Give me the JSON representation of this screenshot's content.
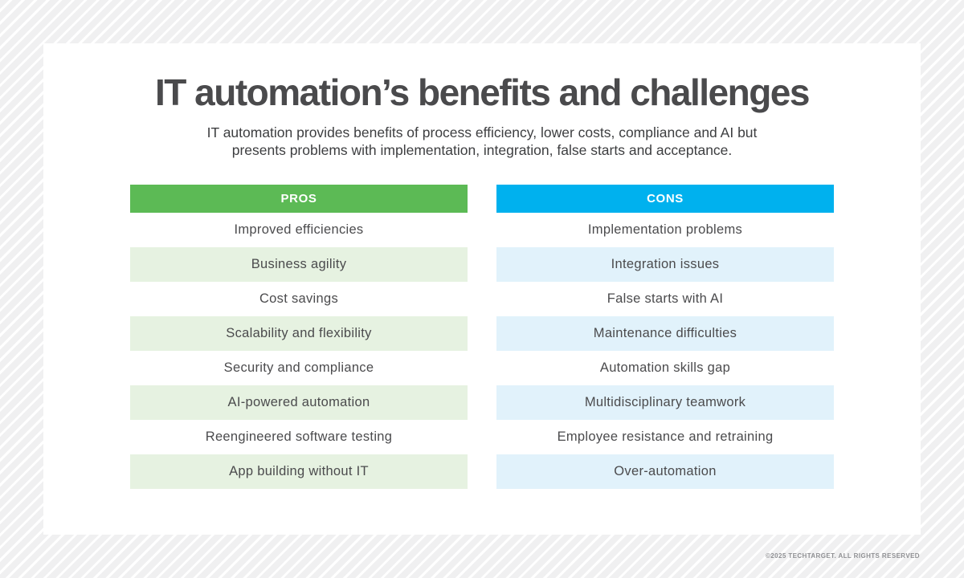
{
  "title": "IT automation’s benefits and challenges",
  "subtitle": {
    "line1": "IT automation provides benefits of process efficiency, lower costs, compliance and AI but",
    "line2": "presents problems with implementation, integration, false starts and acceptance."
  },
  "columns": [
    {
      "header": "PROS",
      "header_bg": "#5cba55",
      "row_tint": "#e6f2e1",
      "items": [
        "Improved efficiencies",
        "Business agility",
        "Cost savings",
        "Scalability and flexibility",
        "Security and compliance",
        "AI-powered automation",
        "Reengineered software testing",
        "App building without IT"
      ]
    },
    {
      "header": "CONS",
      "header_bg": "#00b1ee",
      "row_tint": "#e1f2fb",
      "items": [
        "Implementation problems",
        "Integration issues",
        "False starts with AI",
        "Maintenance difficulties",
        "Automation skills gap",
        "Multidisciplinary teamwork",
        "Employee resistance and retraining",
        "Over-automation"
      ]
    }
  ],
  "footer": "©2025 TECHTARGET. ALL RIGHTS RESERVED"
}
